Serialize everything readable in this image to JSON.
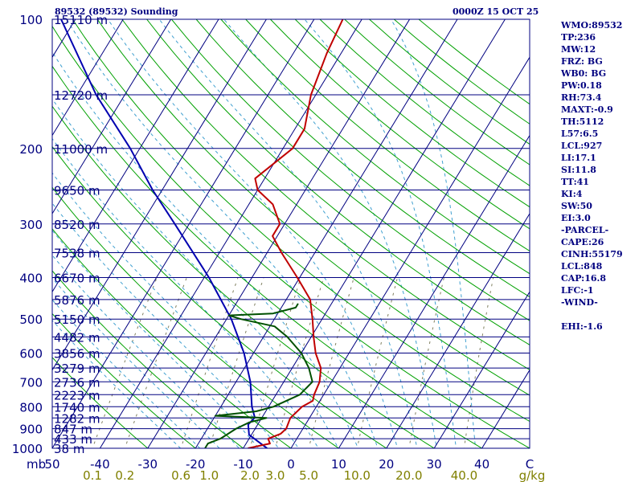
{
  "header": {
    "station_title": "89532 (89532) Sounding",
    "valid_time": "0000Z 15 OCT 25"
  },
  "stats": [
    "WMO:89532",
    "TP:236",
    "MW:12",
    "FRZ: BG",
    "WB0: BG",
    "PW:0.18",
    "RH:73.4",
    "MAXT:-0.9",
    "TH:5112",
    "L57:6.5",
    "LCL:927",
    "LI:17.1",
    "SI:11.8",
    "TT:41",
    "KI:4",
    "SW:50",
    "EI:3.0",
    "-PARCEL-",
    "CAPE:26",
    "CINH:55179",
    "LCL:848",
    "CAP:16.8",
    "LFC:-1",
    "-WIND-",
    "",
    "EHI:-1.6"
  ],
  "colors": {
    "frame": "#000080",
    "isobar": "#000080",
    "isotherm": "#000080",
    "dry_adiabat": "#00a000",
    "moist_adiabat": "#40a0d0",
    "mixing_ratio": "#808060",
    "temperature": "#c00000",
    "dewpoint": "#005000",
    "parcel": "#0000b0",
    "mixing_label": "#808000"
  },
  "chart_data": {
    "type": "skew-t",
    "title": "89532 (89532) Sounding",
    "pressure_axis_unit": "mb",
    "temp_axis_unit": "C",
    "mixing_ratio_unit": "g/kg",
    "pressure_range": [
      1000,
      100
    ],
    "temperature_range": [
      -50,
      50
    ],
    "isobars": [
      {
        "p": 100,
        "label": "100",
        "height": "15110 m"
      },
      {
        "p": 150,
        "label": "",
        "height": "12720 m"
      },
      {
        "p": 200,
        "label": "200",
        "height": "11000 m"
      },
      {
        "p": 250,
        "label": "",
        "height": "9650 m"
      },
      {
        "p": 300,
        "label": "300",
        "height": "8520 m"
      },
      {
        "p": 350,
        "label": "",
        "height": "7538 m"
      },
      {
        "p": 400,
        "label": "400",
        "height": "6670 m"
      },
      {
        "p": 450,
        "label": "",
        "height": "5876 m"
      },
      {
        "p": 500,
        "label": "500",
        "height": "5150 m"
      },
      {
        "p": 550,
        "label": "",
        "height": "4482 m"
      },
      {
        "p": 600,
        "label": "600",
        "height": "3856 m"
      },
      {
        "p": 650,
        "label": "",
        "height": "3279 m"
      },
      {
        "p": 700,
        "label": "700",
        "height": "2736 m"
      },
      {
        "p": 750,
        "label": "",
        "height": "2223 m"
      },
      {
        "p": 800,
        "label": "800",
        "height": "1740 m"
      },
      {
        "p": 850,
        "label": "",
        "height": "1282 m"
      },
      {
        "p": 900,
        "label": "900",
        "height": "847 m"
      },
      {
        "p": 950,
        "label": "",
        "height": "433 m"
      },
      {
        "p": 1000,
        "label": "1000",
        "height": "38 m"
      }
    ],
    "temperature_ticks": [
      {
        "value": -50,
        "label": "50"
      },
      {
        "value": -40,
        "label": "-40"
      },
      {
        "value": -30,
        "label": "-30"
      },
      {
        "value": -20,
        "label": "-20"
      },
      {
        "value": -10,
        "label": "-10"
      },
      {
        "value": 0,
        "label": "0"
      },
      {
        "value": 10,
        "label": "10"
      },
      {
        "value": 20,
        "label": "20"
      },
      {
        "value": 30,
        "label": "30"
      },
      {
        "value": 40,
        "label": "40"
      },
      {
        "value": 50,
        "label": "C"
      }
    ],
    "mixing_ratio_ticks": [
      {
        "w": 0.1,
        "label": "0.1"
      },
      {
        "w": 0.2,
        "label": "0.2"
      },
      {
        "w": 0.6,
        "label": "0.6"
      },
      {
        "w": 1.0,
        "label": "1.0"
      },
      {
        "w": 2.0,
        "label": "2.0"
      },
      {
        "w": 3.0,
        "label": "3.0"
      },
      {
        "w": 5.0,
        "label": "5.0"
      },
      {
        "w": 10.0,
        "label": "10.0"
      },
      {
        "w": 20.0,
        "label": "20.0"
      },
      {
        "w": 40.0,
        "label": "40.0"
      },
      {
        "w": null,
        "label": "g/kg"
      }
    ],
    "temperature_profile": [
      {
        "p": 1000,
        "t": -9
      },
      {
        "p": 975,
        "t": -5
      },
      {
        "p": 950,
        "t": -6
      },
      {
        "p": 925,
        "t": -4
      },
      {
        "p": 900,
        "t": -3.5
      },
      {
        "p": 850,
        "t": -4
      },
      {
        "p": 800,
        "t": -3
      },
      {
        "p": 775,
        "t": -1.5
      },
      {
        "p": 750,
        "t": -2
      },
      {
        "p": 700,
        "t": -2.5
      },
      {
        "p": 650,
        "t": -4
      },
      {
        "p": 600,
        "t": -7
      },
      {
        "p": 550,
        "t": -9.5
      },
      {
        "p": 500,
        "t": -12
      },
      {
        "p": 450,
        "t": -15
      },
      {
        "p": 400,
        "t": -20.5
      },
      {
        "p": 350,
        "t": -27
      },
      {
        "p": 320,
        "t": -31
      },
      {
        "p": 300,
        "t": -31
      },
      {
        "p": 270,
        "t": -35
      },
      {
        "p": 250,
        "t": -40
      },
      {
        "p": 235,
        "t": -42
      },
      {
        "p": 200,
        "t": -38
      },
      {
        "p": 180,
        "t": -38
      },
      {
        "p": 150,
        "t": -41
      },
      {
        "p": 120,
        "t": -43
      },
      {
        "p": 100,
        "t": -44
      }
    ],
    "dewpoint_profile": [
      {
        "p": 1000,
        "t": -18
      },
      {
        "p": 975,
        "t": -18
      },
      {
        "p": 950,
        "t": -16
      },
      {
        "p": 900,
        "t": -14
      },
      {
        "p": 870,
        "t": -12
      },
      {
        "p": 850,
        "t": -9
      },
      {
        "p": 840,
        "t": -20
      },
      {
        "p": 820,
        "t": -12
      },
      {
        "p": 800,
        "t": -9
      },
      {
        "p": 750,
        "t": -5
      },
      {
        "p": 700,
        "t": -4
      },
      {
        "p": 650,
        "t": -6.5
      },
      {
        "p": 600,
        "t": -10
      },
      {
        "p": 550,
        "t": -15
      },
      {
        "p": 520,
        "t": -19
      },
      {
        "p": 500,
        "t": -27
      },
      {
        "p": 490,
        "t": -30
      },
      {
        "p": 485,
        "t": -21
      },
      {
        "p": 470,
        "t": -17
      },
      {
        "p": 460,
        "t": -17
      }
    ],
    "parcel_profile": [
      {
        "p": 1000,
        "t": -5
      },
      {
        "p": 930,
        "t": -10.5
      },
      {
        "p": 880,
        "t": -12
      },
      {
        "p": 848,
        "t": -11.5
      },
      {
        "p": 800,
        "t": -13.5
      },
      {
        "p": 700,
        "t": -17
      },
      {
        "p": 600,
        "t": -22
      },
      {
        "p": 500,
        "t": -29
      },
      {
        "p": 400,
        "t": -39
      },
      {
        "p": 300,
        "t": -53
      },
      {
        "p": 250,
        "t": -62
      },
      {
        "p": 200,
        "t": -72
      },
      {
        "p": 150,
        "t": -86
      },
      {
        "p": 100,
        "t": -103
      }
    ]
  }
}
